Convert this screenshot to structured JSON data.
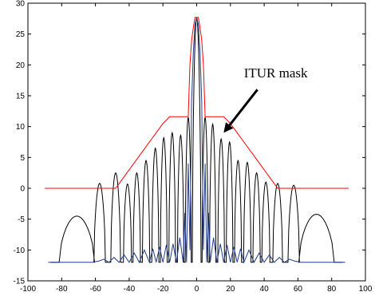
{
  "chart_data": {
    "type": "line",
    "title": "",
    "xlabel": "",
    "ylabel": "",
    "xlim": [
      -100,
      100
    ],
    "ylim": [
      -15,
      30
    ],
    "grid": false,
    "xticks": [
      -100,
      -80,
      -60,
      -40,
      -20,
      0,
      20,
      40,
      60,
      80,
      100
    ],
    "yticks": [
      -15,
      -10,
      -5,
      0,
      5,
      10,
      15,
      20,
      25,
      30
    ],
    "annotation": {
      "text": "ITUR mask",
      "arrow_to": [
        16,
        9
      ]
    },
    "series": [
      {
        "color": "#000000",
        "lobes": [
          {
            "center": -71,
            "peak": -4.5,
            "halfwidth": 10.5
          },
          {
            "center": -57.5,
            "peak": 0.8,
            "halfwidth": 3.4
          },
          {
            "center": -48,
            "peak": 2.5,
            "halfwidth": 2.9
          },
          {
            "center": -41,
            "peak": 0.7,
            "halfwidth": 2.4
          },
          {
            "center": -35.5,
            "peak": 2.5,
            "halfwidth": 2.2
          },
          {
            "center": -30,
            "peak": 4.5,
            "halfwidth": 2.2
          },
          {
            "center": -24.5,
            "peak": 6.5,
            "halfwidth": 2.1
          },
          {
            "center": -19.5,
            "peak": 8.2,
            "halfwidth": 2.0
          },
          {
            "center": -14.5,
            "peak": 9.0,
            "halfwidth": 2.0
          },
          {
            "center": -9.5,
            "peak": 8.6,
            "halfwidth": 1.9
          },
          {
            "center": -5,
            "peak": 11.5,
            "halfwidth": 1.8
          },
          {
            "center": 0,
            "peak": 27.7,
            "halfwidth": 2.6
          },
          {
            "center": 5,
            "peak": 11.5,
            "halfwidth": 1.8
          },
          {
            "center": 9.5,
            "peak": 10.4,
            "halfwidth": 1.9
          },
          {
            "center": 14.5,
            "peak": 8.0,
            "halfwidth": 2.0
          },
          {
            "center": 19.5,
            "peak": 7.5,
            "halfwidth": 2.0
          },
          {
            "center": 24.5,
            "peak": 4.5,
            "halfwidth": 2.1
          },
          {
            "center": 30,
            "peak": 4.2,
            "halfwidth": 2.2
          },
          {
            "center": 35.5,
            "peak": 2.5,
            "halfwidth": 2.2
          },
          {
            "center": 41,
            "peak": 1.0,
            "halfwidth": 2.4
          },
          {
            "center": 48,
            "peak": 0.8,
            "halfwidth": 2.9
          },
          {
            "center": 57.5,
            "peak": 0.5,
            "halfwidth": 3.4
          },
          {
            "center": 71,
            "peak": -4.2,
            "halfwidth": 10.5
          }
        ],
        "floor": -12
      },
      {
        "color": "#223d8c",
        "x": [
          -88,
          -62,
          -58,
          -55,
          -52,
          -49,
          -46,
          -43,
          -40,
          -37,
          -34,
          -31,
          -28,
          -26,
          -24,
          -22,
          -20,
          -18,
          -16,
          -14,
          -12,
          -10,
          -8,
          -7,
          -6,
          -5,
          -4,
          -3,
          -2,
          -1,
          0,
          1,
          2,
          3,
          4,
          5,
          6,
          7,
          8,
          10,
          12,
          14,
          16,
          18,
          20,
          22,
          24,
          26,
          28,
          31,
          34,
          37,
          40,
          43,
          46,
          49,
          52,
          55,
          58,
          62,
          88
        ],
        "y": [
          -12,
          -12,
          -11.8,
          -11.5,
          -12,
          -11.2,
          -12,
          -10.8,
          -12,
          -10.5,
          -12,
          -10.0,
          -12,
          -9.8,
          -12,
          -9.5,
          -12,
          -9.2,
          -12,
          -9.0,
          -12,
          -8.0,
          -12,
          -4,
          -12,
          4,
          -10,
          14,
          22,
          26.5,
          27.7,
          26.5,
          22,
          14,
          -10,
          4,
          -12,
          -4,
          -12,
          -8.0,
          -12,
          -9.0,
          -12,
          -9.2,
          -12,
          -9.5,
          -12,
          -9.8,
          -12,
          -10.0,
          -12,
          -10.5,
          -12,
          -10.8,
          -12,
          -11.2,
          -12,
          -11.5,
          -11.8,
          -12,
          -12
        ]
      },
      {
        "color": "#ff0000",
        "x": [
          -90,
          -48,
          -44,
          -40,
          -36,
          -32,
          -28,
          -24,
          -20,
          -16,
          -12,
          -10,
          -5,
          -4,
          -3,
          -2,
          -1,
          1,
          2,
          3,
          4,
          5,
          10,
          12,
          16,
          20,
          24,
          28,
          32,
          36,
          40,
          44,
          48,
          90
        ],
        "y": [
          0,
          0,
          1.5,
          3.0,
          4.5,
          6.0,
          7.5,
          9.0,
          10.5,
          11.6,
          11.6,
          11.6,
          11.6,
          20,
          24,
          26,
          27.7,
          27.7,
          26,
          24,
          20,
          11.6,
          11.6,
          11.6,
          11.6,
          10.5,
          9.0,
          7.5,
          6.0,
          4.5,
          3.0,
          1.5,
          0,
          0
        ]
      }
    ]
  }
}
